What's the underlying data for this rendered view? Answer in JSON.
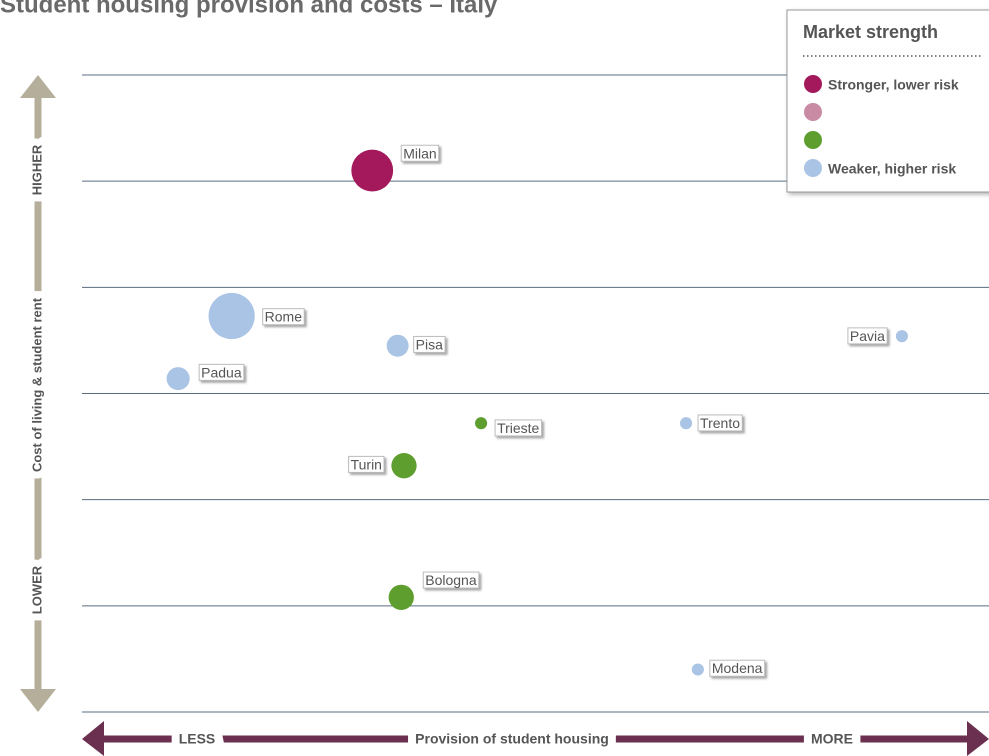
{
  "chart_data": {
    "type": "scatter",
    "title": "Student housing provision and costs – Italy",
    "x_label": "Provision of student housing",
    "x_low": "LESS",
    "x_high": "MORE",
    "y_label": "Cost of living & student rent",
    "y_high": "HIGHER",
    "y_low": "LOWER",
    "legend_title": "Market strength",
    "xlim": [
      0,
      10
    ],
    "ylim": [
      0,
      6
    ],
    "yticks": [
      0,
      1,
      2,
      3,
      4,
      5,
      6
    ],
    "grid": true,
    "series": [
      {
        "name": "Stronger, lower risk",
        "color": "#a3195b",
        "labels": [
          "Milan"
        ],
        "x": [
          3.2
        ],
        "values": [
          5.1
        ],
        "sizes": [
          3.8
        ]
      },
      {
        "name": null,
        "color": "#c98aa3",
        "labels": [],
        "x": [],
        "values": [],
        "sizes": []
      },
      {
        "name": null,
        "color": "#5e9e2f",
        "labels": [
          "Trieste",
          "Turin",
          "Bologna"
        ],
        "x": [
          4.4,
          3.55,
          3.52
        ],
        "values": [
          2.72,
          2.32,
          1.08
        ],
        "sizes": [
          1.1,
          2.3,
          2.3
        ]
      },
      {
        "name": "Weaker, higher risk",
        "color": "#a9c4e4",
        "labels": [
          "Rome",
          "Pisa",
          "Padua",
          "Pavia",
          "Trento",
          "Modena"
        ],
        "x": [
          1.65,
          3.48,
          1.06,
          9.04,
          6.66,
          6.79
        ],
        "values": [
          3.73,
          3.45,
          3.14,
          3.54,
          2.72,
          0.4
        ],
        "sizes": [
          4.2,
          2,
          2.1,
          1.1,
          1.1,
          1.1
        ]
      }
    ]
  }
}
